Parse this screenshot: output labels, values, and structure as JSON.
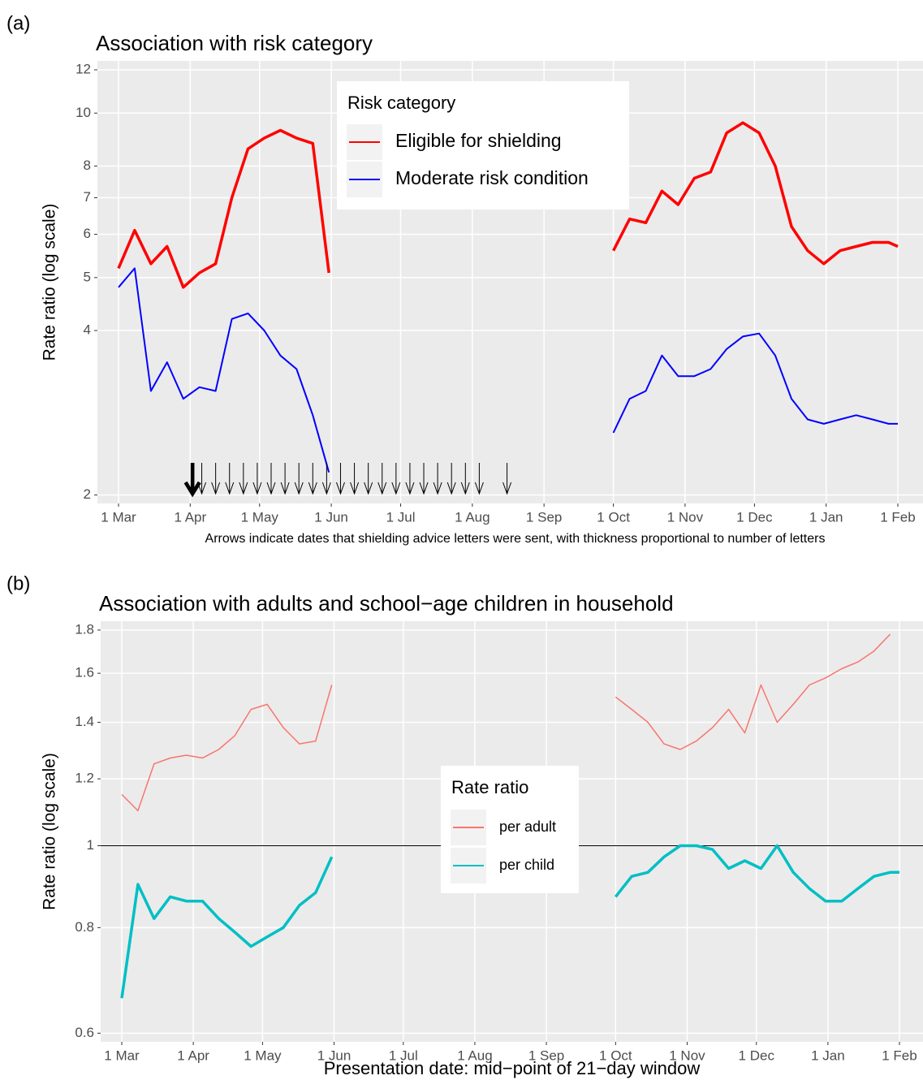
{
  "chart_data": [
    {
      "type": "line",
      "panel": "(a)",
      "title": "Association with risk category",
      "ylabel": "Rate ratio (log scale)",
      "caption": "Arrows indicate dates that shielding advice letters were sent, with thickness proportional to number of letters",
      "log_scale": true,
      "grid": true,
      "legend_position": "top",
      "legend_title": "Risk category",
      "x": [
        "1 Mar",
        "8 Mar",
        "15 Mar",
        "22 Mar",
        "29 Mar",
        "5 Apr",
        "12 Apr",
        "19 Apr",
        "26 Apr",
        "3 May",
        "10 May",
        "17 May",
        "24 May",
        "31 May",
        "15 Jul",
        "1 Oct",
        "8 Oct",
        "15 Oct",
        "22 Oct",
        "29 Oct",
        "5 Nov",
        "12 Nov",
        "19 Nov",
        "26 Nov",
        "3 Dec",
        "10 Dec",
        "17 Dec",
        "24 Dec",
        "31 Dec",
        "7 Jan",
        "14 Jan",
        "21 Jan",
        "28 Jan",
        "1 Feb"
      ],
      "series": [
        {
          "name": "Eligible for shielding",
          "color": "#ff0000",
          "values": [
            5.2,
            6.1,
            5.3,
            5.7,
            4.8,
            5.1,
            5.3,
            7.0,
            8.6,
            9.0,
            9.3,
            9.0,
            8.8,
            5.1,
            null,
            5.6,
            6.4,
            6.3,
            7.2,
            6.8,
            7.6,
            7.8,
            9.2,
            9.6,
            9.2,
            8.0,
            6.2,
            5.6,
            5.3,
            5.6,
            5.7,
            5.8,
            5.8,
            5.7
          ]
        },
        {
          "name": "Moderate risk condition",
          "color": "#0000ff",
          "values": [
            4.8,
            5.2,
            3.1,
            3.5,
            3.0,
            3.15,
            3.1,
            4.2,
            4.3,
            4.0,
            3.6,
            3.4,
            2.8,
            2.2,
            null,
            2.6,
            3.0,
            3.1,
            3.6,
            3.3,
            3.3,
            3.4,
            3.7,
            3.9,
            3.95,
            3.6,
            3.0,
            2.75,
            2.7,
            2.75,
            2.8,
            2.75,
            2.7,
            2.7
          ]
        }
      ],
      "arrows": {
        "x": [
          "2 Apr",
          "6 Apr",
          "12 Apr",
          "18 Apr",
          "24 Apr",
          "30 Apr",
          "6 May",
          "12 May",
          "18 May",
          "24 May",
          "30 May",
          "5 Jun",
          "11 Jun",
          "17 Jun",
          "23 Jun",
          "29 Jun",
          "5 Jul",
          "11 Jul",
          "17 Jul",
          "23 Jul",
          "29 Jul",
          "4 Aug",
          "16 Aug"
        ],
        "letters": [
          10,
          1,
          1,
          1,
          1,
          1,
          1,
          1,
          1,
          1,
          1,
          1,
          1,
          1,
          1,
          1,
          1,
          1,
          1,
          1,
          1,
          1,
          1
        ]
      },
      "xlim": [
        "1 Mar",
        "1 Feb"
      ],
      "xticks": [
        "1 Mar",
        "1 Apr",
        "1 May",
        "1 Jun",
        "1 Jul",
        "1 Aug",
        "1 Sep",
        "1 Oct",
        "1 Nov",
        "1 Dec",
        "1 Jan",
        "1 Feb"
      ],
      "ylim": [
        1.93,
        12.46
      ],
      "yticks": [
        2,
        4,
        5,
        6,
        7,
        8,
        10,
        12
      ]
    },
    {
      "type": "line",
      "panel": "(b)",
      "title": "Association with adults and school−age children in household",
      "ylabel": "Rate ratio (log scale)",
      "xlabel": "Presentation date: mid−point of 21−day window",
      "log_scale": true,
      "grid": true,
      "legend_position": "center",
      "legend_title": "Rate ratio",
      "hline": 1,
      "x": [
        "1 Mar",
        "8 Mar",
        "15 Mar",
        "22 Mar",
        "29 Mar",
        "5 Apr",
        "12 Apr",
        "19 Apr",
        "26 Apr",
        "3 May",
        "10 May",
        "17 May",
        "24 May",
        "31 May",
        "15 Jul",
        "1 Oct",
        "8 Oct",
        "15 Oct",
        "22 Oct",
        "29 Oct",
        "5 Nov",
        "12 Nov",
        "19 Nov",
        "26 Nov",
        "3 Dec",
        "10 Dec",
        "17 Dec",
        "24 Dec",
        "31 Dec",
        "7 Jan",
        "14 Jan",
        "21 Jan",
        "28 Jan",
        "1 Feb"
      ],
      "series": [
        {
          "name": "per adult",
          "color": "#f8766d",
          "values": [
            1.15,
            1.1,
            1.25,
            1.27,
            1.28,
            1.27,
            1.3,
            1.35,
            1.45,
            1.47,
            1.38,
            1.32,
            1.33,
            1.55,
            null,
            1.5,
            1.45,
            1.4,
            1.32,
            1.3,
            1.33,
            1.38,
            1.45,
            1.36,
            1.55,
            1.4,
            1.47,
            1.55,
            1.58,
            1.62,
            1.65,
            1.7,
            1.78,
            null
          ]
        },
        {
          "name": "per child",
          "color": "#00bfc4",
          "values": [
            0.66,
            0.9,
            0.82,
            0.87,
            0.86,
            0.86,
            0.82,
            0.79,
            0.76,
            0.78,
            0.8,
            0.85,
            0.88,
            0.97,
            null,
            0.87,
            0.92,
            0.93,
            0.97,
            1.0,
            1.0,
            0.99,
            0.94,
            0.96,
            0.94,
            1.0,
            0.93,
            0.89,
            0.86,
            0.86,
            0.89,
            0.92,
            0.93,
            0.93
          ]
        }
      ],
      "xlim": [
        "1 Mar",
        "1 Feb"
      ],
      "xticks": [
        "1 Mar",
        "1 Apr",
        "1 May",
        "1 Jun",
        "1 Jul",
        "1 Aug",
        "1 Sep",
        "1 Oct",
        "1 Nov",
        "1 Dec",
        "1 Jan",
        "1 Feb"
      ],
      "ylim": [
        0.586,
        1.844
      ],
      "yticks": [
        0.6,
        0.8,
        1,
        1.2,
        1.4,
        1.6,
        1.8
      ]
    }
  ]
}
